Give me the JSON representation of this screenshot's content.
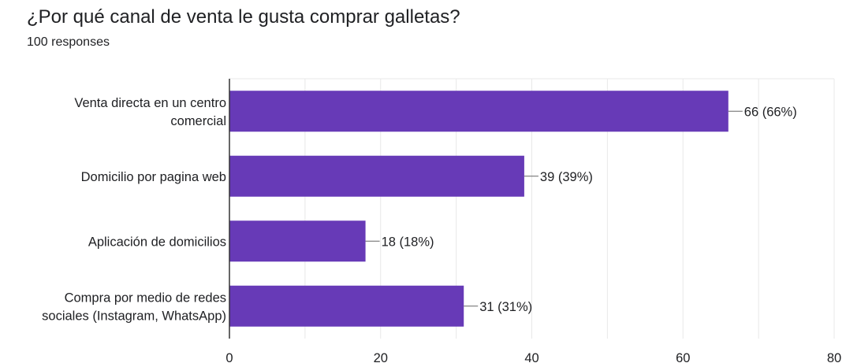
{
  "header": {
    "title": "¿Por qué canal de venta le gusta comprar galletas?",
    "subtitle": "100 responses"
  },
  "chart_data": {
    "type": "bar",
    "orientation": "horizontal",
    "title": "¿Por qué canal de venta le gusta comprar galletas?",
    "subtitle": "100 responses",
    "categories": [
      [
        "Venta directa en un centro",
        "comercial"
      ],
      [
        "Domicilio por pagina web"
      ],
      [
        "Aplicación de domicilios"
      ],
      [
        "Compra por medio de redes",
        "sociales (Instagram, WhatsApp)"
      ]
    ],
    "values": [
      66,
      39,
      18,
      31
    ],
    "data_labels": [
      "66 (66%)",
      "39 (39%)",
      "18 (18%)",
      "31 (31%)"
    ],
    "xlim": [
      0,
      80
    ],
    "xticks": [
      0,
      20,
      40,
      60,
      80
    ],
    "grid": true,
    "bar_color": "#673ab7",
    "grid_color": "#e8e8e8",
    "axis_color": "#333333"
  }
}
